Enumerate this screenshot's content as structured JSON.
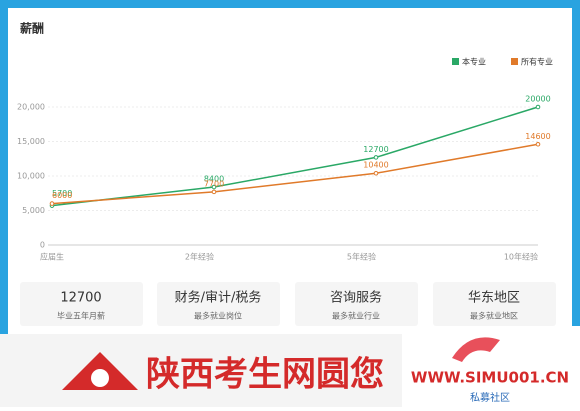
{
  "chart_data": {
    "type": "line",
    "title": "薪酬",
    "categories": [
      "应届生",
      "2年经验",
      "5年经验",
      "10年经验"
    ],
    "series": [
      {
        "name": "本专业",
        "color": "#2aa866",
        "values": [
          5700,
          8400,
          12700,
          20000
        ]
      },
      {
        "name": "所有专业",
        "color": "#e07a2a",
        "values": [
          6000,
          7700,
          10400,
          14600
        ]
      }
    ],
    "ylim": [
      0,
      20000
    ],
    "yticks": [
      0,
      {
        "value": 5000,
        "label": "5,000"
      },
      {
        "value": 10000,
        "label": "10,000"
      },
      {
        "value": 15000,
        "label": "15,000"
      },
      {
        "value": 20000,
        "label": "20,000"
      }
    ],
    "grid": true,
    "legend": "top-right"
  },
  "cards": [
    {
      "value": "12700",
      "label": "毕业五年月薪"
    },
    {
      "value": "财务/审计/税务",
      "label": "最多就业岗位"
    },
    {
      "value": "咨询服务",
      "label": "最多就业行业"
    },
    {
      "value": "华东地区",
      "label": "最多就业地区"
    }
  ],
  "banner": {
    "title": "陕西考生网圆您",
    "site": "WWW.SIMU001.CN",
    "site_label": "私募社区"
  }
}
